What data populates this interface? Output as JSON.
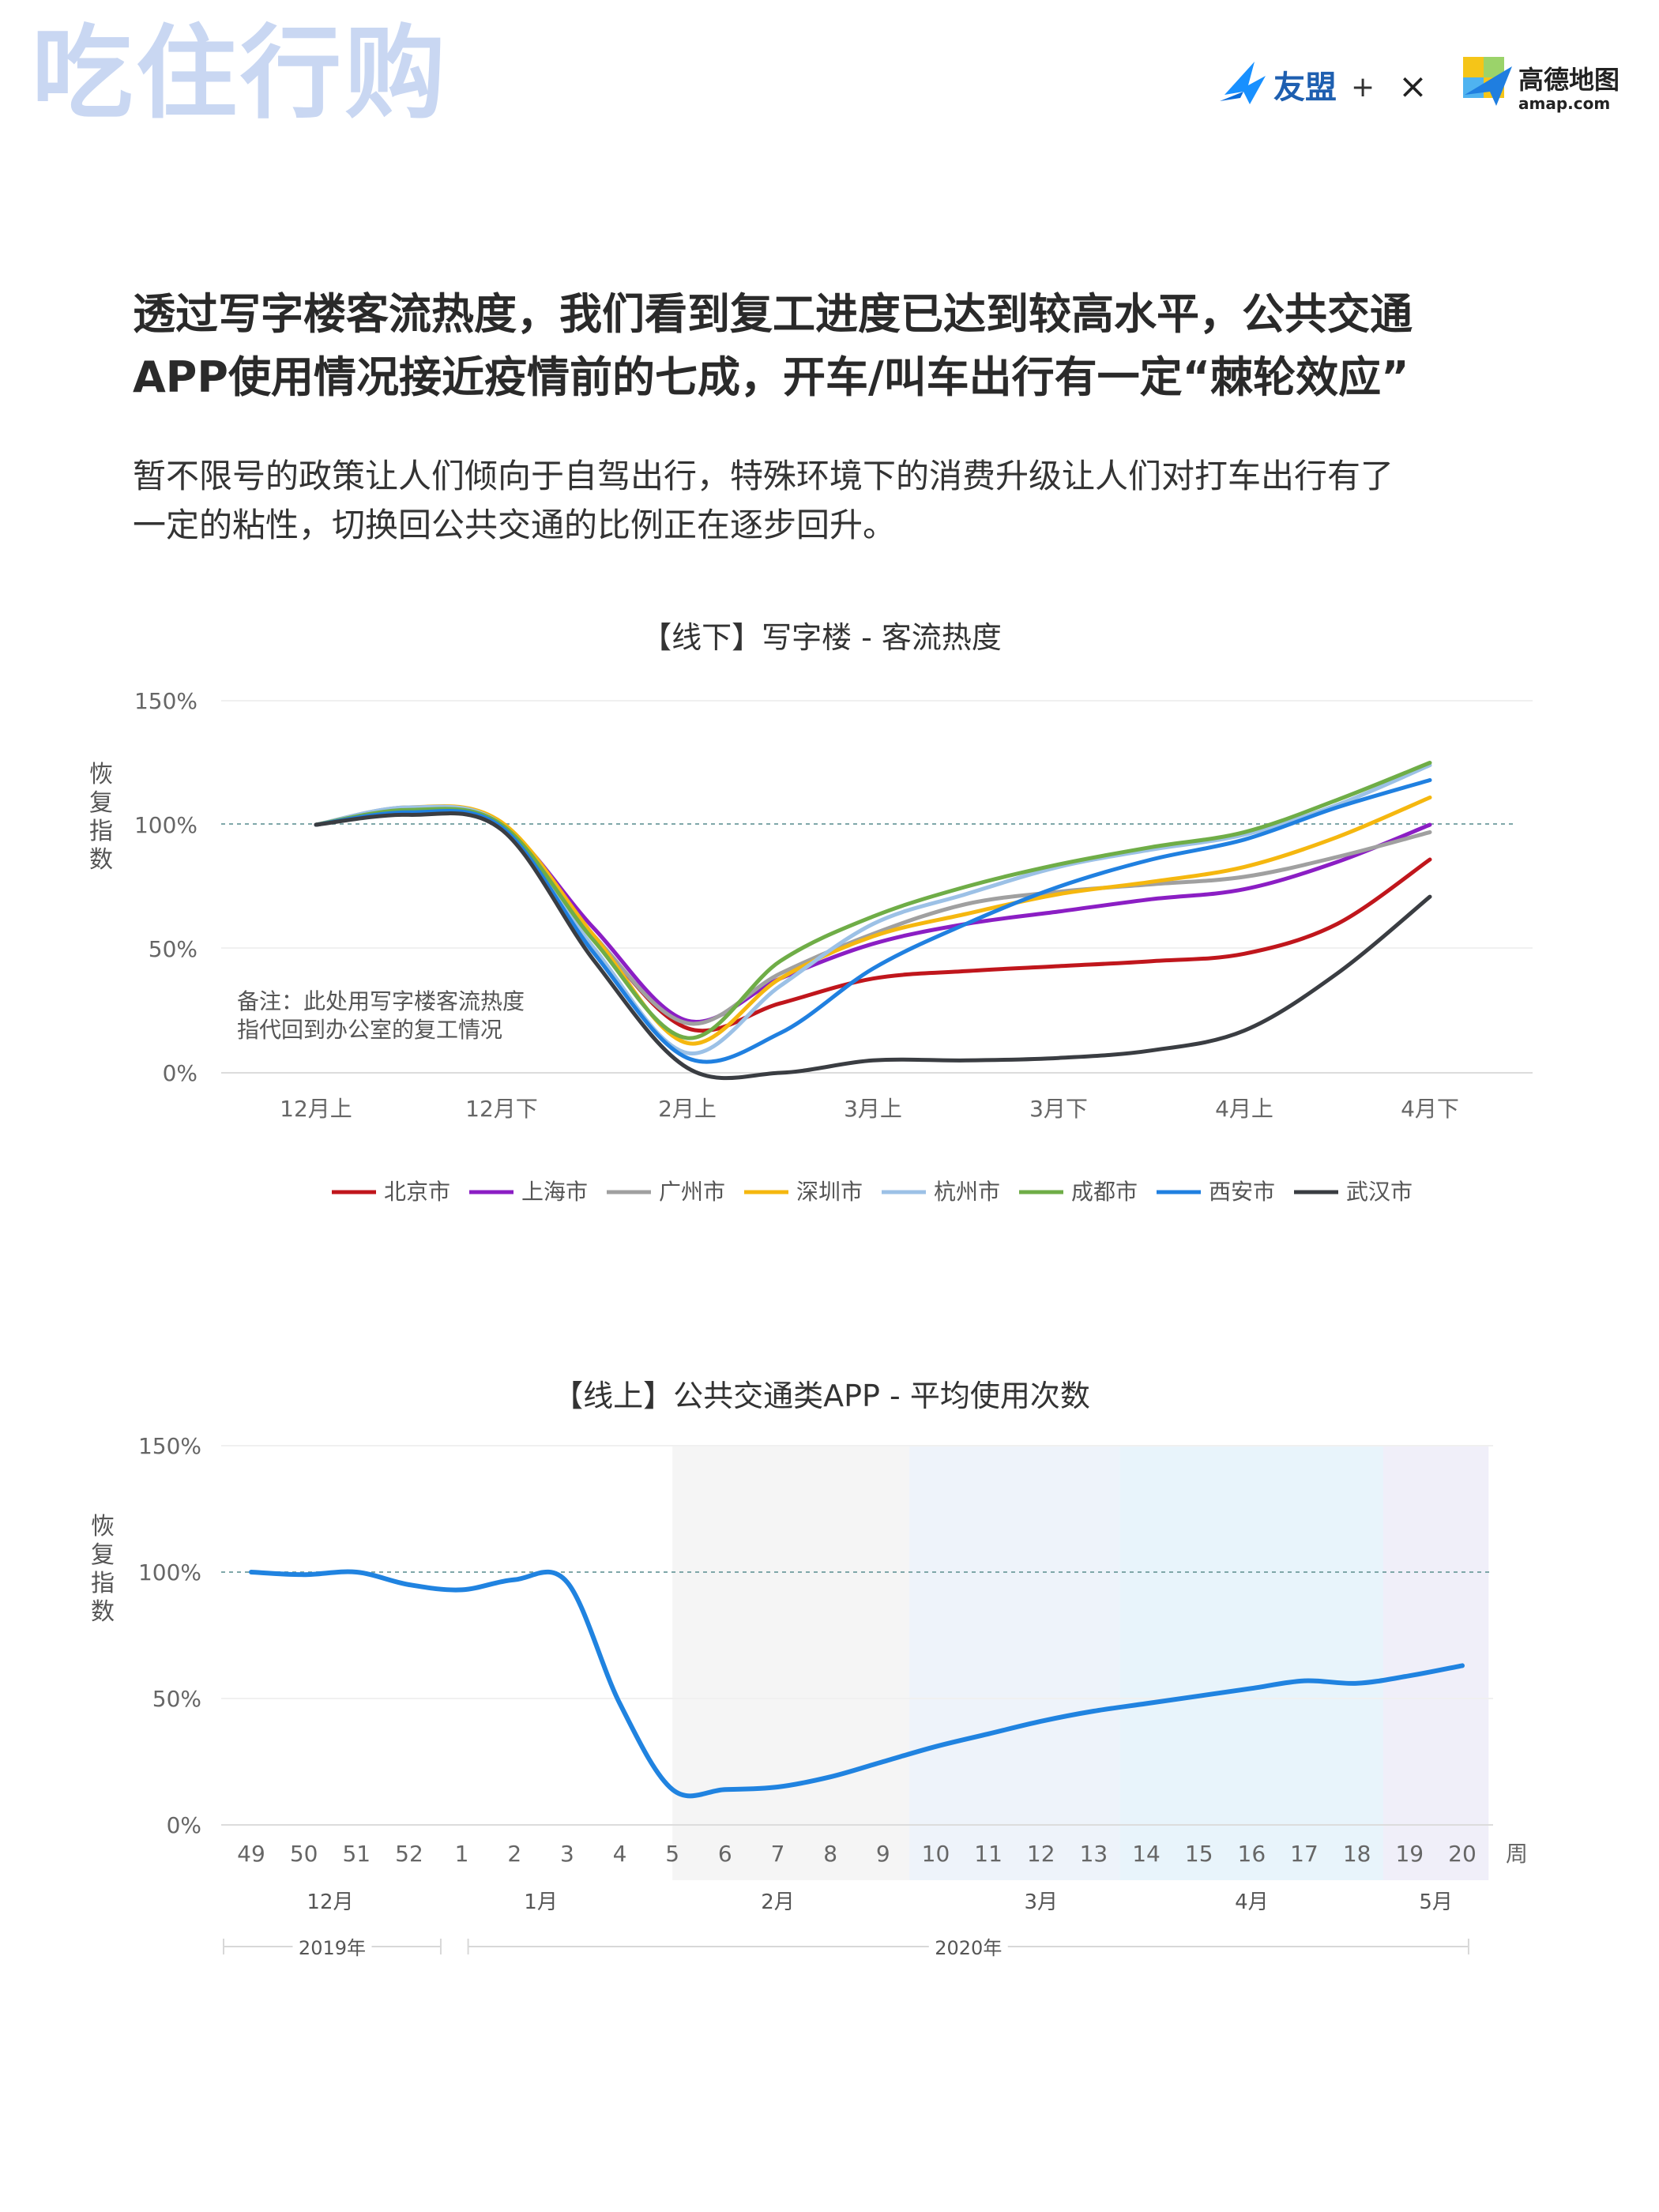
{
  "page": {
    "brand_title": "吃住行购",
    "logos": {
      "umeng_label": "友盟",
      "plus": "+",
      "times": "×",
      "amap_label": "高德地图",
      "amap_domain": "amap.com"
    },
    "headline_line1": "透过写字楼客流热度，我们看到复工进度已达到较高水平，公共交通",
    "headline_line2": "APP使用情况接近疫情前的七成，开车/叫车出行有一定“棘轮效应”",
    "intro_line1": "暂不限号的政策让人们倾向于自驾出行，特殊环境下的消费升级让人们对打车出行有了",
    "intro_line2": "一定的粘性，切换回公共交通的比例正在逐步回升。"
  },
  "chart_data": [
    {
      "type": "line",
      "title": "【线下】写字楼 - 客流热度",
      "ylabel": "恢复指数",
      "ylim": [
        0,
        150
      ],
      "yticks": [
        "0%",
        "50%",
        "100%",
        "150%"
      ],
      "reference_line": 100,
      "x_tick_labels": [
        "12月上",
        "12月下",
        "2月上",
        "3月上",
        "3月下",
        "4月上",
        "4月下"
      ],
      "x": [
        0,
        0.5,
        1,
        1.5,
        2,
        2.5,
        3,
        3.5,
        4,
        4.5,
        5,
        5.5,
        6
      ],
      "annotation_line1": "备注：此处用写字楼客流热度",
      "annotation_line2": "指代回到办公室的复工情况",
      "legend_position": "bottom",
      "series": [
        {
          "name": "北京市",
          "color": "#c0161c",
          "values": [
            100,
            105,
            100,
            55,
            18,
            28,
            38,
            41,
            43,
            45,
            48,
            60,
            86
          ]
        },
        {
          "name": "上海市",
          "color": "#8b1ec4",
          "values": [
            100,
            106,
            100,
            58,
            21,
            38,
            52,
            60,
            65,
            70,
            74,
            85,
            100
          ]
        },
        {
          "name": "广州市",
          "color": "#a0a0a0",
          "values": [
            100,
            107,
            100,
            55,
            20,
            40,
            56,
            68,
            73,
            76,
            79,
            87,
            97
          ]
        },
        {
          "name": "深圳市",
          "color": "#f5b70f",
          "values": [
            100,
            107,
            101,
            55,
            12,
            38,
            55,
            64,
            72,
            77,
            83,
            95,
            111
          ]
        },
        {
          "name": "杭州市",
          "color": "#9cc1e6",
          "values": [
            100,
            107,
            100,
            50,
            8,
            35,
            60,
            72,
            83,
            90,
            96,
            108,
            124
          ]
        },
        {
          "name": "成都市",
          "color": "#6fad47",
          "values": [
            100,
            106,
            100,
            53,
            14,
            45,
            63,
            75,
            84,
            91,
            97,
            110,
            125
          ]
        },
        {
          "name": "西安市",
          "color": "#2080e0",
          "values": [
            100,
            105,
            99,
            48,
            6,
            16,
            42,
            60,
            75,
            86,
            94,
            107,
            118
          ]
        },
        {
          "name": "武汉市",
          "color": "#3a3d42",
          "values": [
            100,
            104,
            98,
            45,
            2,
            0,
            5,
            5,
            6,
            9,
            17,
            40,
            71
          ]
        }
      ]
    },
    {
      "type": "line",
      "title": "【线上】公共交通类APP - 平均使用次数",
      "ylabel": "恢复指数",
      "ylim": [
        0,
        150
      ],
      "yticks": [
        "0%",
        "50%",
        "100%",
        "150%"
      ],
      "reference_line": 100,
      "x_unit_label": "周",
      "x": [
        "49",
        "50",
        "51",
        "52",
        "1",
        "2",
        "3",
        "4",
        "5",
        "6",
        "7",
        "8",
        "9",
        "10",
        "11",
        "12",
        "13",
        "14",
        "15",
        "16",
        "17",
        "18",
        "19",
        "20"
      ],
      "month_labels": [
        "12月",
        "1月",
        "2月",
        "3月",
        "4月",
        "5月"
      ],
      "year_labels": [
        "2019年",
        "2020年"
      ],
      "shaded_bands_by_month": [
        {
          "label": "2月",
          "color": "#f5f5f5"
        },
        {
          "label": "3月",
          "color": "#eef3fa"
        },
        {
          "label": "4月",
          "color": "#e8f4fb"
        },
        {
          "label": "5月",
          "color": "#f0eff9"
        }
      ],
      "series": [
        {
          "color": "#2083e0",
          "values": [
            100,
            99,
            100,
            95,
            93,
            97,
            96,
            48,
            14,
            14,
            15,
            19,
            25,
            31,
            36,
            41,
            45,
            48,
            51,
            54,
            57,
            56,
            59,
            63
          ]
        }
      ]
    }
  ]
}
